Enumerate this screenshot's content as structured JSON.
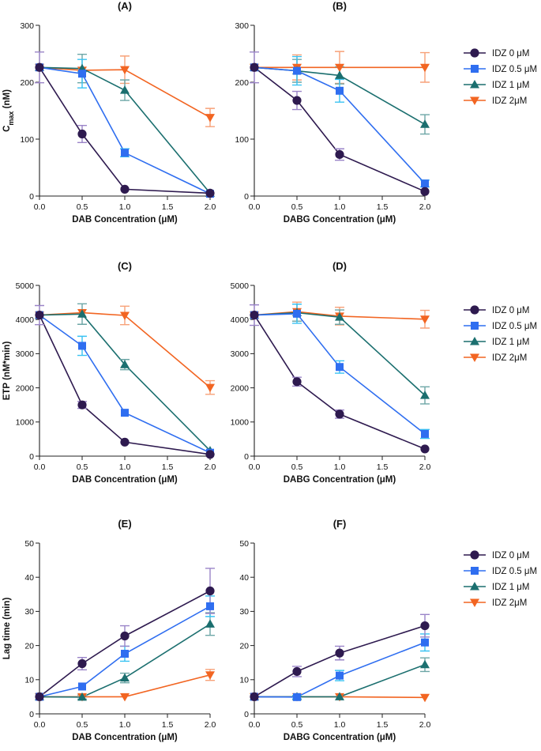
{
  "chart_data": [
    {
      "type": "line",
      "title": "(A)",
      "xlabel": "DAB Concentration (μM)",
      "ylabel_main": "C",
      "ylabel_sub": "max",
      "ylabel_unit": " (nM)",
      "xlim": [
        0,
        2
      ],
      "ylim": [
        0,
        300
      ],
      "x": [
        0,
        0.5,
        1.0,
        2.0
      ],
      "xticks": [
        "0.0",
        "0.5",
        "1.0",
        "1.5",
        "2.0"
      ],
      "yticks": [
        "0",
        "100",
        "200",
        "300"
      ],
      "series": [
        {
          "name": "IDZ 0 μM",
          "values": [
            226,
            109,
            12,
            5
          ],
          "errors": [
            27,
            15,
            0,
            0
          ]
        },
        {
          "name": "IDZ 0.5 μM",
          "values": [
            226,
            215,
            76,
            4
          ],
          "errors": [
            0,
            25,
            7,
            0
          ]
        },
        {
          "name": "IDZ 1 μM",
          "values": [
            226,
            224,
            186,
            5
          ],
          "errors": [
            0,
            25,
            18,
            0
          ]
        },
        {
          "name": "IDZ 2μM",
          "values": [
            226,
            221,
            222,
            138
          ],
          "errors": [
            0,
            0,
            24,
            16
          ]
        }
      ]
    },
    {
      "type": "line",
      "title": "(B)",
      "xlabel": "DABG Concentration (μM)",
      "xlim": [
        0,
        2
      ],
      "ylim": [
        0,
        300
      ],
      "x": [
        0,
        0.5,
        1.0,
        2.0
      ],
      "xticks": [
        "0.0",
        "0.5",
        "1.0",
        "1.5",
        "2.0"
      ],
      "yticks": [
        "0",
        "100",
        "200",
        "300"
      ],
      "series": [
        {
          "name": "IDZ 0 μM",
          "values": [
            226,
            168,
            73,
            8
          ],
          "errors": [
            27,
            16,
            10,
            0
          ]
        },
        {
          "name": "IDZ 0.5 μM",
          "values": [
            226,
            220,
            185,
            22
          ],
          "errors": [
            0,
            25,
            20,
            6
          ]
        },
        {
          "name": "IDZ 1 μM",
          "values": [
            226,
            220,
            212,
            126
          ],
          "errors": [
            0,
            20,
            15,
            17
          ]
        },
        {
          "name": "IDZ 2μM",
          "values": [
            226,
            226,
            226,
            226
          ],
          "errors": [
            0,
            22,
            28,
            26
          ]
        }
      ]
    },
    {
      "type": "line",
      "title": "(C)",
      "xlabel": "DAB Concentration (μM)",
      "ylabel": "ETP (nM*min)",
      "xlim": [
        0,
        2
      ],
      "ylim": [
        0,
        5000
      ],
      "x": [
        0,
        0.5,
        1.0,
        2.0
      ],
      "xticks": [
        "0.0",
        "0.5",
        "1.0",
        "1.5",
        "2.0"
      ],
      "yticks": [
        "0",
        "1000",
        "2000",
        "3000",
        "4000",
        "5000"
      ],
      "series": [
        {
          "name": "IDZ 0 μM",
          "values": [
            4130,
            1500,
            410,
            50
          ],
          "errors": [
            280,
            100,
            0,
            0
          ]
        },
        {
          "name": "IDZ 0.5 μM",
          "values": [
            4130,
            3230,
            1270,
            100
          ],
          "errors": [
            0,
            280,
            0,
            0
          ]
        },
        {
          "name": "IDZ 1 μM",
          "values": [
            4130,
            4160,
            2680,
            160
          ],
          "errors": [
            0,
            300,
            150,
            0
          ]
        },
        {
          "name": "IDZ 2μM",
          "values": [
            4130,
            4200,
            4120,
            2010
          ],
          "errors": [
            0,
            0,
            270,
            200
          ]
        }
      ]
    },
    {
      "type": "line",
      "title": "(D)",
      "xlabel": "DABG Concentration (μM)",
      "xlim": [
        0,
        2
      ],
      "ylim": [
        0,
        5000
      ],
      "x": [
        0,
        0.5,
        1.0,
        2.0
      ],
      "xticks": [
        "0.0",
        "0.5",
        "1.0",
        "1.5",
        "2.0"
      ],
      "yticks": [
        "0",
        "1000",
        "2000",
        "3000",
        "4000",
        "5000"
      ],
      "series": [
        {
          "name": "IDZ 0 μM",
          "values": [
            4130,
            2180,
            1230,
            210
          ],
          "errors": [
            300,
            130,
            120,
            0
          ]
        },
        {
          "name": "IDZ 0.5 μM",
          "values": [
            4130,
            4170,
            2610,
            650
          ],
          "errors": [
            0,
            280,
            180,
            130
          ]
        },
        {
          "name": "IDZ 1 μM",
          "values": [
            4130,
            4200,
            4070,
            1780
          ],
          "errors": [
            0,
            250,
            210,
            250
          ]
        },
        {
          "name": "IDZ 2μM",
          "values": [
            4130,
            4230,
            4100,
            4010
          ],
          "errors": [
            0,
            280,
            260,
            260
          ]
        }
      ]
    },
    {
      "type": "line",
      "title": "(E)",
      "xlabel": "DAB Concentration (μM)",
      "ylabel": "Lag time (min)",
      "xlim": [
        0,
        2
      ],
      "ylim": [
        0,
        50
      ],
      "x": [
        0,
        0.5,
        1.0,
        2.0
      ],
      "xticks": [
        "0.0",
        "0.5",
        "1.0",
        "1.5",
        "2.0"
      ],
      "yticks": [
        "0",
        "10",
        "20",
        "30",
        "40",
        "50"
      ],
      "series": [
        {
          "name": "IDZ 0 μM",
          "values": [
            5,
            14.7,
            22.8,
            36
          ],
          "errors": [
            0,
            1.8,
            3,
            6.6
          ]
        },
        {
          "name": "IDZ 0.5 μM",
          "values": [
            5,
            8,
            17.6,
            31.5
          ],
          "errors": [
            0,
            0,
            2.2,
            3
          ]
        },
        {
          "name": "IDZ 1 μM",
          "values": [
            5,
            4.9,
            10.5,
            26.3
          ],
          "errors": [
            0,
            0.6,
            1.4,
            3.3
          ]
        },
        {
          "name": "IDZ 2μM",
          "values": [
            5,
            5,
            5,
            11.4
          ],
          "errors": [
            0,
            0,
            0,
            1.6
          ]
        }
      ]
    },
    {
      "type": "line",
      "title": "(F)",
      "xlabel": "DABG Concentration (μM)",
      "xlim": [
        0,
        2
      ],
      "ylim": [
        0,
        50
      ],
      "x": [
        0,
        0.5,
        1.0,
        2.0
      ],
      "xticks": [
        "0.0",
        "0.5",
        "1.0",
        "1.5",
        "2.0"
      ],
      "yticks": [
        "0",
        "10",
        "20",
        "30",
        "40",
        "50"
      ],
      "series": [
        {
          "name": "IDZ 0 μM",
          "values": [
            5,
            12.4,
            17.8,
            25.8
          ],
          "errors": [
            0,
            1.5,
            2,
            3.3
          ]
        },
        {
          "name": "IDZ 0.5 μM",
          "values": [
            5,
            4.9,
            11.2,
            20.9
          ],
          "errors": [
            0,
            0.5,
            1.5,
            2.5
          ]
        },
        {
          "name": "IDZ 1 μM",
          "values": [
            5,
            5,
            5,
            14.4
          ],
          "errors": [
            0,
            0,
            0,
            2
          ]
        },
        {
          "name": "IDZ 2μM",
          "values": [
            5,
            5,
            5,
            4.8
          ],
          "errors": [
            0,
            0,
            0,
            0
          ]
        }
      ]
    }
  ],
  "legend": [
    {
      "label": "IDZ 0 μM",
      "color": "#2e1a4f",
      "marker": "circle"
    },
    {
      "label": "IDZ 0.5 μM",
      "color": "#2f6ef0",
      "marker": "square"
    },
    {
      "label": "IDZ 1 μM",
      "color": "#1b6f6f",
      "marker": "triangle-up"
    },
    {
      "label": "IDZ 2μM",
      "color": "#f26522",
      "marker": "triangle-down"
    }
  ],
  "error_bar_colors": [
    "#9a84c8",
    "#38c2f2",
    "#6ca6a6",
    "#f7a178"
  ]
}
